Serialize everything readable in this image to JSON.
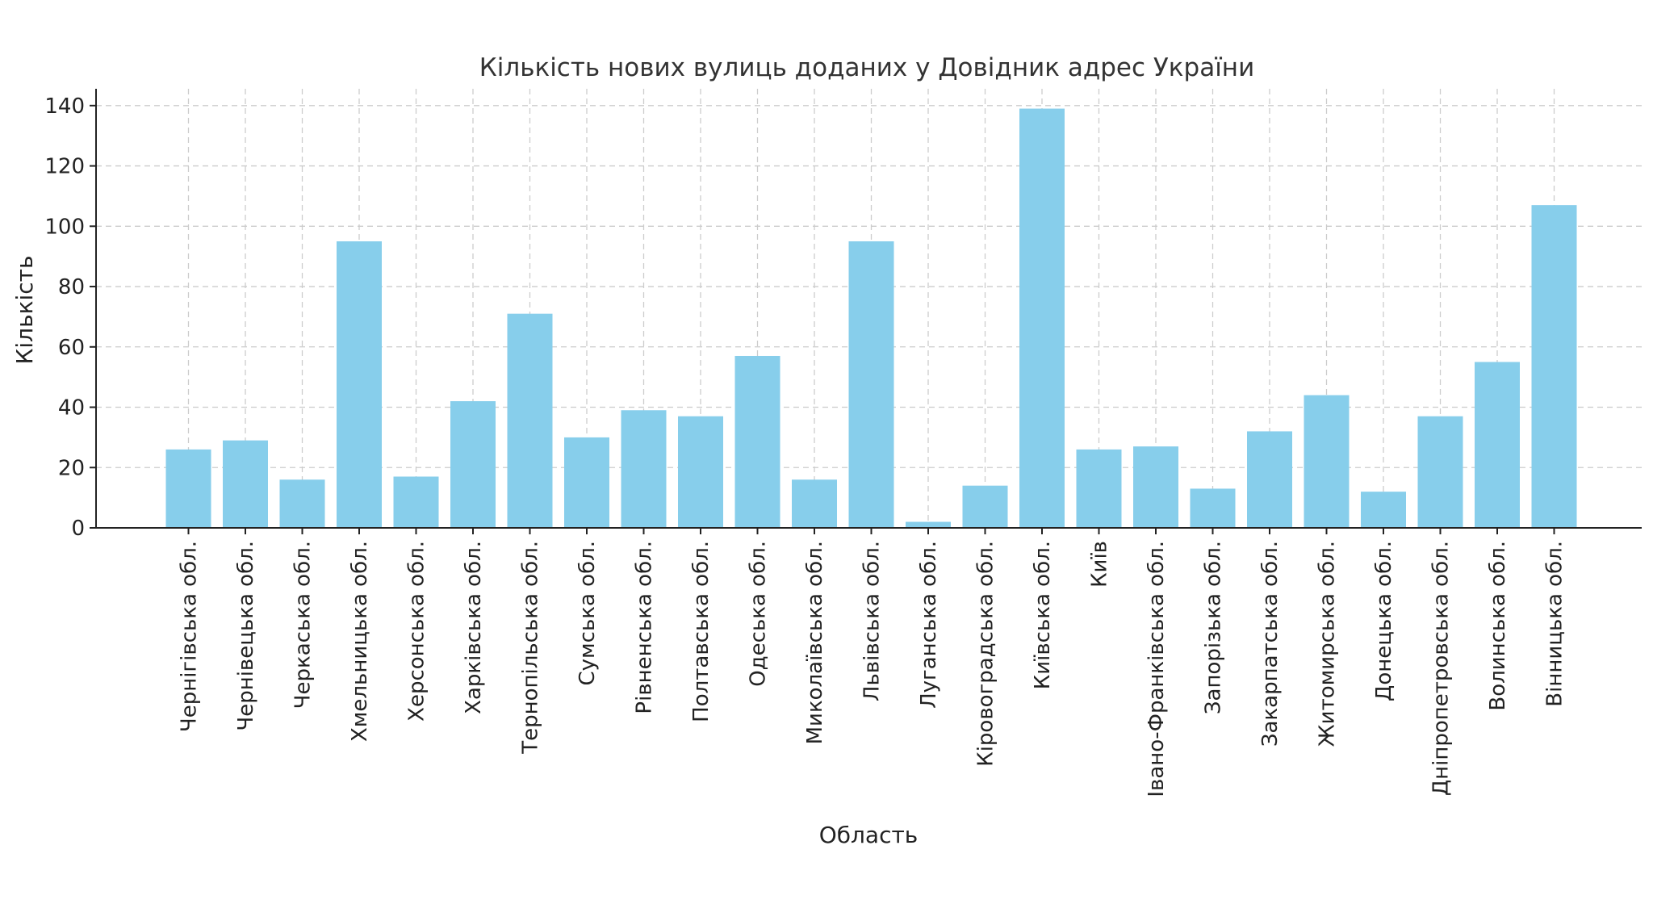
{
  "chart_data": {
    "type": "bar",
    "title": "Кількість нових вулиць доданих у Довідник адрес України",
    "xlabel": "Область",
    "ylabel": "Кількість",
    "categories": [
      "Чернігівська обл.",
      "Чернівецька обл.",
      "Черкаська обл.",
      "Хмельницька обл.",
      "Херсонська обл.",
      "Харківська обл.",
      "Тернопільська обл.",
      "Сумська обл.",
      "Рівненська обл.",
      "Полтавська обл.",
      "Одеська обл.",
      "Миколаївська обл.",
      "Львівська обл.",
      "Луганська обл.",
      "Кіровоградська обл.",
      "Київська обл.",
      "Київ",
      "Івано-Франківська обл.",
      "Запорізька обл.",
      "Закарпатська обл.",
      "Житомирська обл.",
      "Донецька обл.",
      "Дніпропетровська обл.",
      "Волинська обл.",
      "Вінницька обл."
    ],
    "values": [
      26,
      29,
      16,
      95,
      17,
      42,
      71,
      30,
      39,
      37,
      57,
      16,
      95,
      2,
      14,
      139,
      26,
      27,
      13,
      32,
      44,
      12,
      37,
      55,
      107
    ],
    "ylim": [
      0,
      145
    ],
    "yticks": [
      0,
      20,
      40,
      60,
      80,
      100,
      120,
      140
    ],
    "grid": true,
    "bar_color": "#87ceeb"
  }
}
